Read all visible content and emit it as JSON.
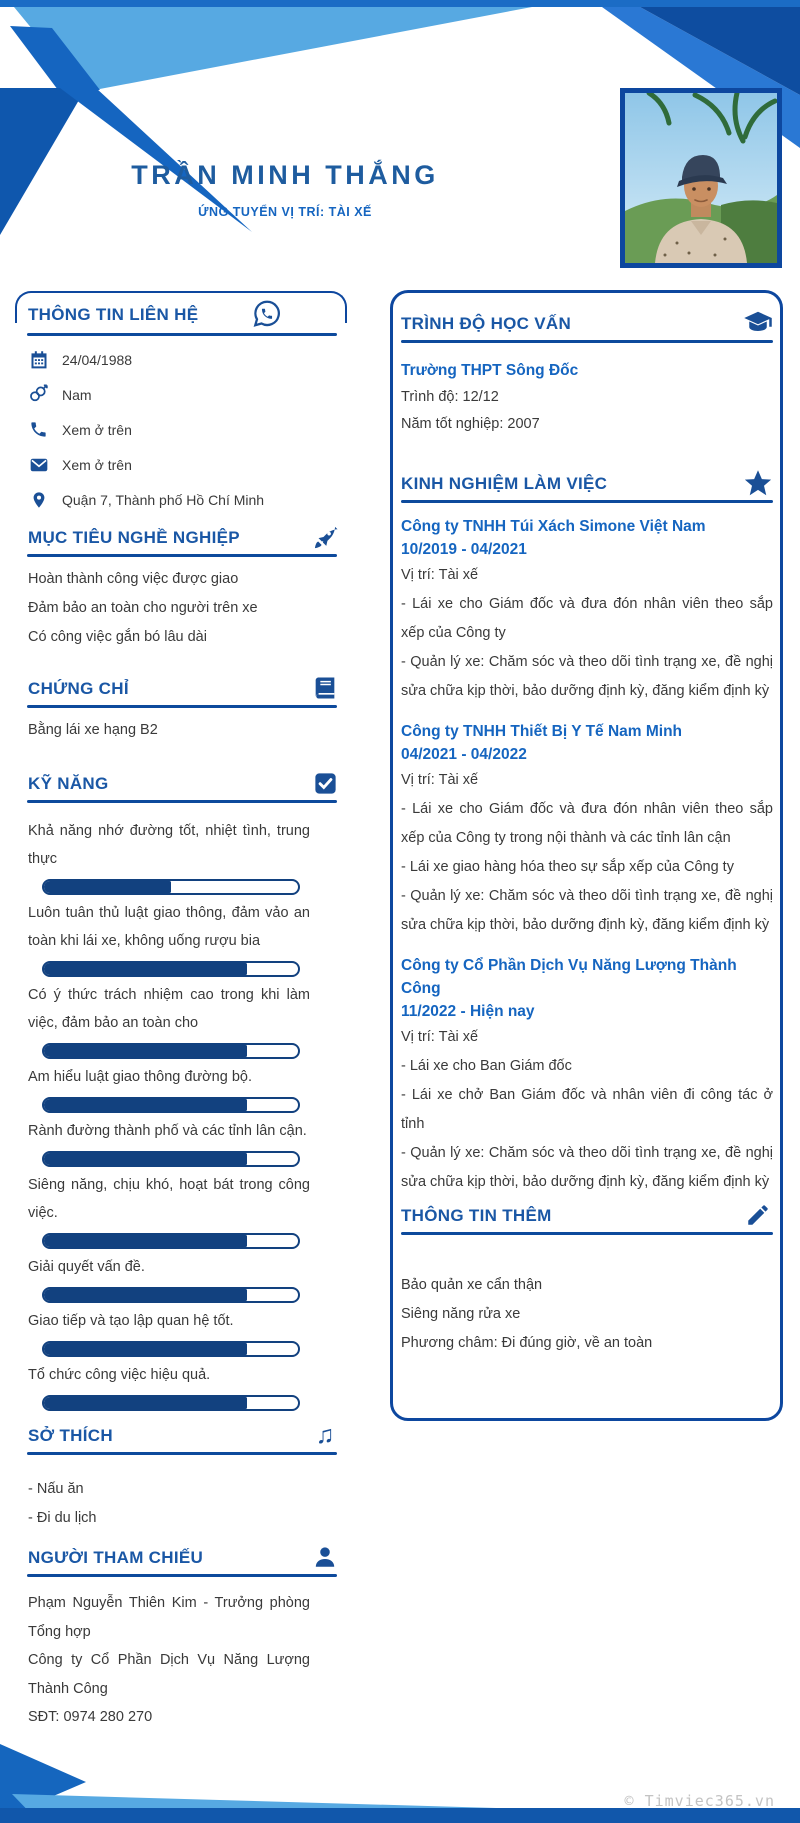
{
  "colors": {
    "primary_blue": "#1565c0",
    "navy": "#0d479f",
    "light_blue": "#57a9e2",
    "title_blue": "#1a57a5",
    "bar_fill": "#12417f",
    "body_text": "#3a3a3a",
    "watermark_gray": "#c3c3c3"
  },
  "header": {
    "name": "TRẦN MINH THẮNG",
    "subtitle": "ỨNG TUYỂN VỊ TRÍ: TÀI XẾ"
  },
  "contact": {
    "title": "THÔNG TIN LIÊN HỆ",
    "items": [
      {
        "icon": "calendar-icon",
        "text": "24/04/1988"
      },
      {
        "icon": "gender-icon",
        "text": "Nam"
      },
      {
        "icon": "phone-icon",
        "text": "Xem ở trên"
      },
      {
        "icon": "email-icon",
        "text": "Xem ở trên"
      },
      {
        "icon": "location-icon",
        "text": "Quận 7, Thành phố Hồ Chí Minh"
      }
    ]
  },
  "objective": {
    "title": "MỤC TIÊU NGHỀ NGHIỆP",
    "items": [
      "Hoàn thành công việc được giao",
      "Đảm bảo an toàn cho người trên xe",
      "Có công việc gắn bó lâu dài"
    ]
  },
  "certificates": {
    "title": "CHỨNG CHỈ",
    "items": [
      "Bằng lái xe hạng B2"
    ]
  },
  "skills": {
    "title": "KỸ NĂNG",
    "items": [
      {
        "label": "Khả năng nhớ đường tốt, nhiệt tình, trung thực",
        "pct": "50%"
      },
      {
        "label": "Luôn tuân thủ luật giao thông, đảm vảo an toàn khi lái xe, không uống rượu bia",
        "pct": "80%"
      },
      {
        "label": "Có ý thức trách nhiệm cao trong khi làm việc, đảm bảo an toàn cho",
        "pct": "80%"
      },
      {
        "label": "Am hiểu luật giao thông đường bộ.",
        "pct": "80%"
      },
      {
        "label": "Rành đường thành phố và các tỉnh lân cận.",
        "pct": "80%"
      },
      {
        "label": "Siêng năng, chịu khó, hoạt bát trong công việc.",
        "pct": "80%"
      },
      {
        "label": "Giải quyết vấn đề.",
        "pct": "80%"
      },
      {
        "label": "Giao tiếp và tạo lập quan hệ tốt.",
        "pct": "80%"
      },
      {
        "label": "Tổ chức công việc hiệu quả.",
        "pct": "80%"
      }
    ]
  },
  "hobbies": {
    "title": "SỞ THÍCH",
    "items": [
      "- Nấu ăn",
      "- Đi du lịch"
    ]
  },
  "references": {
    "title": "NGƯỜI THAM CHIẾU",
    "lines": [
      "Phạm Nguyễn Thiên Kim - Trưởng phòng Tổng hợp",
      "Công ty Cổ Phần Dịch Vụ Năng Lượng Thành Công",
      "SĐT: 0974 280 270"
    ]
  },
  "education": {
    "title": "TRÌNH ĐỘ HỌC VẤN",
    "school": "Trường THPT Sông Đốc",
    "degree": "Trình độ: 12/12",
    "year": "Năm tốt nghiệp: 2007"
  },
  "experience": {
    "title": "KINH NGHIỆM LÀM VIỆC",
    "jobs": [
      {
        "company": "Công ty TNHH Túi Xách Simone Việt Nam",
        "period": "10/2019 - 04/2021",
        "position": "Vị trí: Tài xế",
        "bullets": [
          "- Lái xe cho Giám đốc và đưa đón nhân viên theo sắp xếp của Công ty",
          "- Quản lý xe: Chăm sóc và theo dõi tình trạng xe, đề nghị sửa chữa kịp thời, bảo dưỡng định kỳ, đăng kiểm định kỳ"
        ]
      },
      {
        "company": "Công ty TNHH Thiết Bị Y Tế Nam Minh",
        "period": "04/2021 - 04/2022",
        "position": "Vị trí: Tài xế",
        "bullets": [
          "- Lái xe cho Giám đốc và đưa đón nhân viên theo sắp xếp của Công ty trong nội thành và các tỉnh lân cận",
          "- Lái xe giao hàng hóa theo sự sắp xếp của Công ty",
          "- Quản lý xe: Chăm sóc và theo dõi tình trạng xe, đề nghị sửa chữa kịp thời, bảo dưỡng định kỳ, đăng kiểm định kỳ"
        ]
      },
      {
        "company": "Công ty Cổ Phần Dịch Vụ Năng Lượng Thành Công",
        "period": "11/2022 - Hiện nay",
        "position": "Vị trí: Tài xế",
        "bullets": [
          "- Lái xe cho Ban Giám đốc",
          "- Lái xe chở Ban Giám đốc và nhân viên đi công tác ở tỉnh",
          "- Quản lý xe: Chăm sóc và theo dõi tình trạng xe, đề nghị sửa chữa kịp thời, bảo dưỡng định kỳ, đăng kiểm định kỳ"
        ]
      }
    ]
  },
  "additional": {
    "title": "THÔNG TIN THÊM",
    "lines": [
      "Bảo quản xe cẩn thận",
      "Siêng năng rửa xe",
      "Phương châm: Đi đúng giờ, về an toàn"
    ]
  },
  "footer": {
    "watermark": "© Timviec365.vn"
  }
}
